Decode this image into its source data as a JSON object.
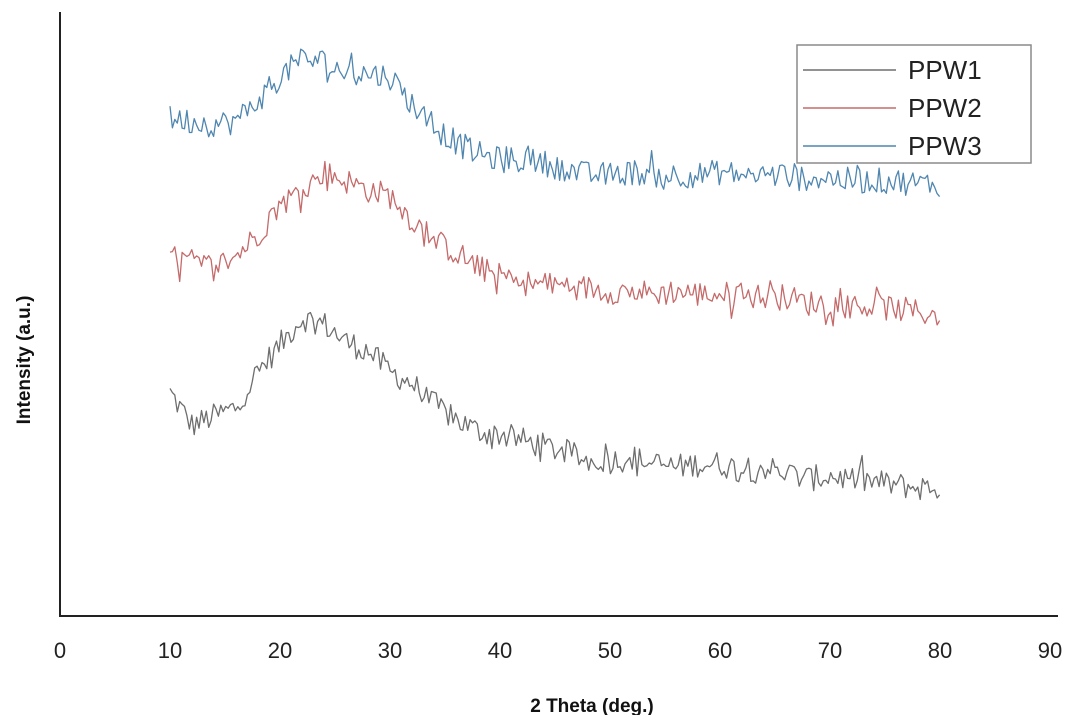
{
  "chart_data": {
    "type": "line",
    "title": "",
    "xlabel": "2 Theta (deg.)",
    "ylabel": "Intensity (a.u.)",
    "xlim": [
      0,
      90
    ],
    "x_ticks": [
      "0",
      "10",
      "20",
      "30",
      "40",
      "50",
      "60",
      "70",
      "80",
      "90"
    ],
    "y_ticks_shown": false,
    "grid": false,
    "legend_position": "top-right",
    "x": [
      10,
      12,
      14,
      16,
      18,
      20,
      22,
      24,
      26,
      28,
      30,
      32,
      34,
      36,
      38,
      40,
      42,
      44,
      46,
      48,
      50,
      52,
      54,
      56,
      58,
      60,
      62,
      64,
      66,
      68,
      70,
      72,
      74,
      76,
      78,
      80
    ],
    "series": [
      {
        "name": "PPW1",
        "color": "#6e6e6e",
        "values": [
          3.75,
          3.2,
          3.35,
          3.5,
          4.1,
          4.55,
          5.0,
          4.9,
          4.6,
          4.45,
          4.1,
          3.9,
          3.55,
          3.3,
          3.1,
          3.05,
          2.95,
          2.85,
          2.75,
          2.6,
          2.6,
          2.65,
          2.55,
          2.5,
          2.55,
          2.55,
          2.45,
          2.5,
          2.4,
          2.3,
          2.35,
          2.3,
          2.25,
          2.2,
          2.15,
          2.15
        ]
      },
      {
        "name": "PPW2",
        "color": "#c56a6a",
        "values": [
          6.0,
          5.95,
          5.85,
          6.05,
          6.4,
          6.9,
          7.15,
          7.45,
          7.3,
          7.15,
          7.05,
          6.65,
          6.3,
          6.1,
          5.85,
          5.7,
          5.6,
          5.55,
          5.55,
          5.5,
          5.45,
          5.45,
          5.4,
          5.45,
          5.4,
          5.4,
          5.4,
          5.35,
          5.35,
          5.25,
          5.25,
          5.2,
          5.2,
          5.15,
          5.1,
          5.05
        ]
      },
      {
        "name": "PPW3",
        "color": "#4f86b0",
        "values": [
          8.35,
          8.3,
          8.25,
          8.3,
          8.65,
          9.05,
          9.35,
          9.3,
          9.1,
          9.1,
          9.05,
          8.6,
          8.2,
          7.95,
          7.75,
          7.65,
          7.65,
          7.6,
          7.5,
          7.4,
          7.4,
          7.45,
          7.4,
          7.4,
          7.4,
          7.45,
          7.4,
          7.4,
          7.4,
          7.35,
          7.35,
          7.3,
          7.3,
          7.3,
          7.25,
          7.25
        ]
      }
    ]
  }
}
